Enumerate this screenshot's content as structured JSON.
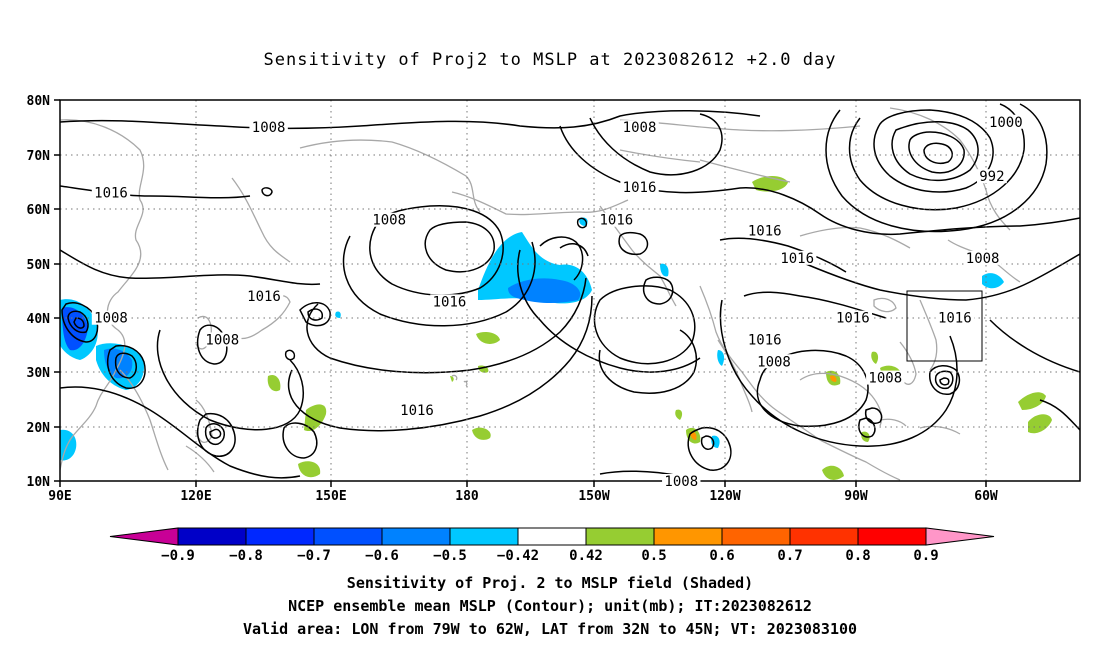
{
  "title": "Sensitivity of Proj2 to MSLP at 2023082612 +2.0 day",
  "map": {
    "lat_labels": [
      "80N",
      "70N",
      "60N",
      "50N",
      "40N",
      "30N",
      "20N",
      "10N"
    ],
    "lon_labels": [
      "90E",
      "120E",
      "150E",
      "180",
      "150W",
      "120W",
      "90W",
      "60W"
    ],
    "contour_labels": [
      {
        "text": "1008",
        "lon": 135,
        "lat": 75
      },
      {
        "text": "1008",
        "lon": 215,
        "lat": 75
      },
      {
        "text": "1000",
        "lon": 294,
        "lat": 76
      },
      {
        "text": "992",
        "lon": 291,
        "lat": 66
      },
      {
        "text": "1016",
        "lon": 101,
        "lat": 63
      },
      {
        "text": "1016",
        "lon": 215,
        "lat": 64
      },
      {
        "text": "1016",
        "lon": 242,
        "lat": 56
      },
      {
        "text": "1008",
        "lon": 161,
        "lat": 58
      },
      {
        "text": "1016",
        "lon": 210,
        "lat": 58
      },
      {
        "text": "1016",
        "lon": 249,
        "lat": 51
      },
      {
        "text": "1008",
        "lon": 289,
        "lat": 51
      },
      {
        "text": "1016",
        "lon": 134,
        "lat": 44
      },
      {
        "text": "1016",
        "lon": 174,
        "lat": 43
      },
      {
        "text": "1008",
        "lon": 101,
        "lat": 40
      },
      {
        "text": "1008",
        "lon": 125,
        "lat": 36
      },
      {
        "text": "1016",
        "lon": 242,
        "lat": 36
      },
      {
        "text": "1016",
        "lon": 261,
        "lat": 40
      },
      {
        "text": "1016",
        "lon": 283,
        "lat": 40
      },
      {
        "text": "1008",
        "lon": 244,
        "lat": 32
      },
      {
        "text": "1008",
        "lon": 268,
        "lat": 29
      },
      {
        "text": "1016",
        "lon": 167,
        "lat": 23
      },
      {
        "text": "1008",
        "lon": 224,
        "lat": 10
      }
    ],
    "verification_box": {
      "lon_min": -79,
      "lon_max": -62,
      "lat_min": 32,
      "lat_max": 45
    }
  },
  "colorbar": {
    "labels": [
      "−0.9",
      "−0.8",
      "−0.7",
      "−0.6",
      "−0.5",
      "−0.42",
      "0.42",
      "0.5",
      "0.6",
      "0.7",
      "0.8",
      "0.9"
    ],
    "colors": [
      "#0000c8",
      "#0028ff",
      "#0050ff",
      "#0082ff",
      "#00c8ff",
      "#ffffff",
      "#96cd32",
      "#ff9600",
      "#ff6400",
      "#ff3200",
      "#ff0000"
    ],
    "low_tip": "#c80096",
    "high_tip": "#ff96c8"
  },
  "caption": {
    "line1": "Sensitivity of Proj. 2 to MSLP field (Shaded)",
    "line2": "NCEP ensemble mean MSLP (Contour); unit(mb); IT:2023082612",
    "line3": "Valid area: LON from 79W to 62W, LAT from 32N to 45N; VT: 2023083100"
  }
}
